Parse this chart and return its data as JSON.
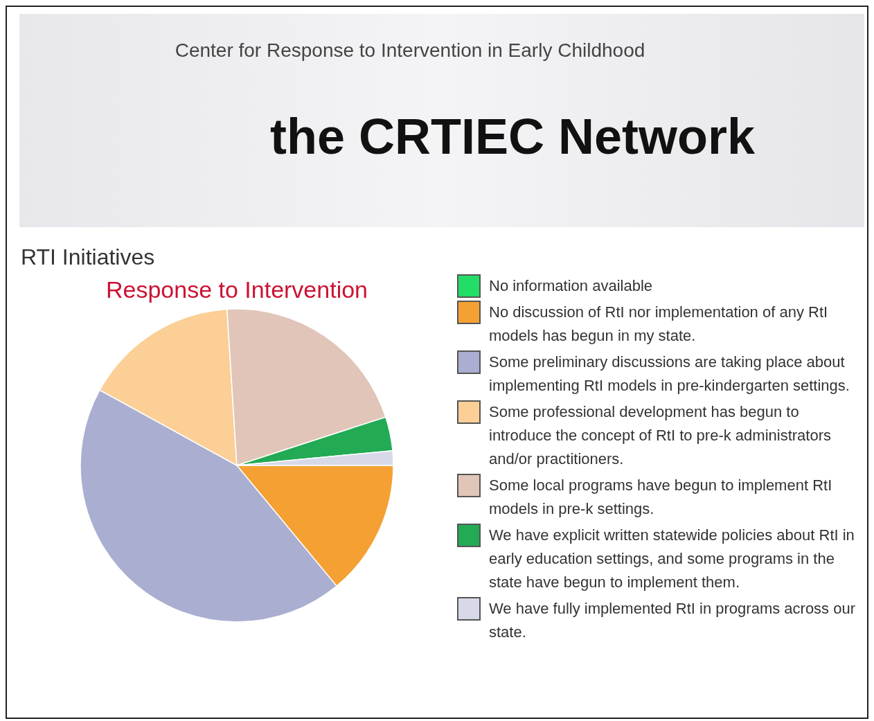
{
  "chart_data": {
    "type": "pie",
    "title": "RTI Initiatives",
    "subtitle": "Response to Intervention",
    "annotations": [
      "Center for Response to Intervention in Early Childhood",
      "the CRTIEC Network"
    ],
    "legend": "right",
    "categories": [
      "No information available",
      "No discussion of RtI nor implementation of any RtI models has begun in my state.",
      "Some preliminary discussions are taking place about implementing RtI models in pre-kindergarten settings.",
      "Some professional development has begun to introduce the concept of RtI to pre-k administrators and/or practitioners.",
      "Some local programs have begun to implement RtI models in pre-k settings.",
      "We have explicit written statewide policies about RtI in early education settings, and some programs in the state have begun to implement them.",
      "We have fully implemented RtI in programs across our state."
    ],
    "values": [
      0,
      14,
      44,
      16,
      21,
      3.5,
      1.5
    ],
    "colors": [
      "#22dd66",
      "#f5a033",
      "#aaaed0",
      "#fbcf96",
      "#e0c5b8",
      "#22aa55",
      "#d8d9e8"
    ]
  }
}
